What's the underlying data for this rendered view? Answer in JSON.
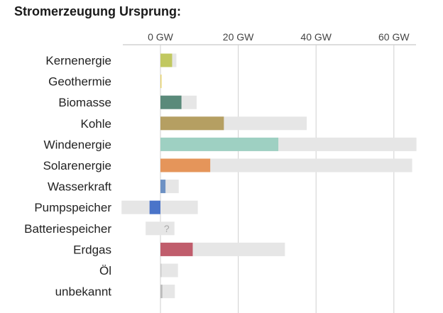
{
  "title": "Stromerzeugung Ursprung:",
  "chart_data": {
    "type": "bar",
    "orientation": "horizontal",
    "unit": "GW",
    "xticks": [
      0,
      20,
      40,
      60
    ],
    "xtick_labels": [
      "0 GW",
      "20 GW",
      "40 GW",
      "60 GW"
    ],
    "xlim": [
      -10,
      66
    ],
    "grid": true,
    "categories": [
      "Kernenergie",
      "Geothermie",
      "Biomasse",
      "Kohle",
      "Windenergie",
      "Solarenergie",
      "Wasserkraft",
      "Pumpspeicher",
      "Batteriespeicher",
      "Erdgas",
      "Öl",
      "unbekannt"
    ],
    "series": [
      {
        "values": [
          3.0,
          0.2,
          5.4,
          16.3,
          30.3,
          12.8,
          1.3,
          -2.8,
          0,
          8.3,
          0.1,
          0.5
        ],
        "colors": [
          "#c1c860",
          "#e6d26a",
          "#5a8a7a",
          "#b59f62",
          "#9ed0c2",
          "#e5955a",
          "#6d91c4",
          "#4a74c9",
          "#cccccc",
          "#c05d6c",
          "#cccccc",
          "#bbbbbb"
        ]
      },
      {
        "range_low": [
          0,
          0,
          0,
          0,
          0,
          0,
          0,
          -10,
          -3.8,
          0,
          0,
          0
        ],
        "range_high": [
          4.1,
          0.2,
          9.3,
          37.6,
          65.8,
          64.7,
          4.7,
          9.6,
          3.6,
          32.0,
          4.5,
          3.7
        ],
        "color": "#e6e6e6"
      }
    ],
    "annotations": [
      {
        "category": "Batteriespeicher",
        "text": "?"
      }
    ]
  }
}
